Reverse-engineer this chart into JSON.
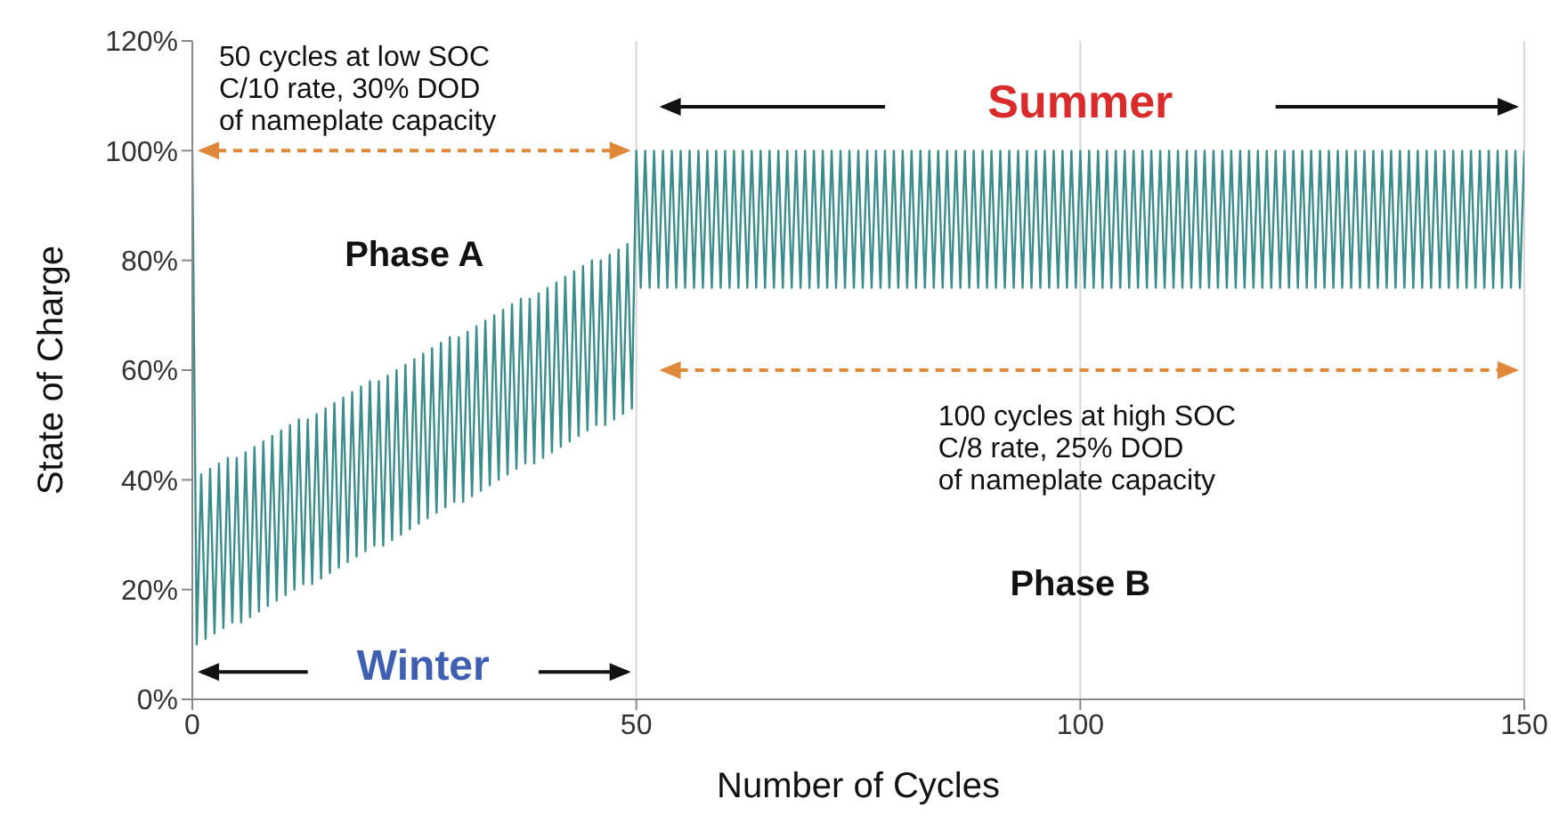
{
  "chart_data": {
    "type": "line",
    "xlabel": "Number of Cycles",
    "ylabel": "State of Charge",
    "xlim": [
      0,
      150
    ],
    "xticks": [
      0,
      50,
      100,
      150
    ],
    "ylim": [
      0,
      120
    ],
    "yticks": [
      {
        "value": 0,
        "label": "0%"
      },
      {
        "value": 20,
        "label": "20%"
      },
      {
        "value": 40,
        "label": "40%"
      },
      {
        "value": 60,
        "label": "60%"
      },
      {
        "value": 80,
        "label": "80%"
      },
      {
        "value": 100,
        "label": "100%"
      },
      {
        "value": 120,
        "label": "120%"
      }
    ],
    "grid": "x",
    "legend": false,
    "marker": "none",
    "line_style": "solid",
    "annotations": [
      "50 cycles at low SOC\nC/10 rate, 30% DOD\nof nameplate capacity",
      "Phase A",
      "Winter",
      "Summer",
      "100 cycles at high SOC\nC/8 rate, 25% DOD\nof nameplate capacity",
      "Phase B"
    ],
    "series": [
      {
        "color": "#3d8c8c",
        "x": [
          0,
          0.5,
          1,
          1.5,
          2,
          2.5,
          3,
          3.5,
          4,
          4.5,
          5,
          5.5,
          6,
          6.5,
          7,
          7.5,
          8,
          8.5,
          9,
          9.5,
          10,
          10.5,
          11,
          11.5,
          12,
          12.5,
          13,
          13.5,
          14,
          14.5,
          15,
          15.5,
          16,
          16.5,
          17,
          17.5,
          18,
          18.5,
          19,
          19.5,
          20,
          20.5,
          21,
          21.5,
          22,
          22.5,
          23,
          23.5,
          24,
          24.5,
          25,
          25.5,
          26,
          26.5,
          27,
          27.5,
          28,
          28.5,
          29,
          29.5,
          30,
          30.5,
          31,
          31.5,
          32,
          32.5,
          33,
          33.5,
          34,
          34.5,
          35,
          35.5,
          36,
          36.5,
          37,
          37.5,
          38,
          38.5,
          39,
          39.5,
          40,
          40.5,
          41,
          41.5,
          42,
          42.5,
          43,
          43.5,
          44,
          44.5,
          45,
          45.5,
          46,
          46.5,
          47,
          47.5,
          48,
          48.5,
          49,
          49.5,
          50,
          50.5,
          51,
          51.5,
          52,
          52.5,
          53,
          53.5,
          54,
          54.5,
          55,
          55.5,
          56,
          56.5,
          57,
          57.5,
          58,
          58.5,
          59,
          59.5,
          60,
          60.5,
          61,
          61.5,
          62,
          62.5,
          63,
          63.5,
          64,
          64.5,
          65,
          65.5,
          66,
          66.5,
          67,
          67.5,
          68,
          68.5,
          69,
          69.5,
          70,
          70.5,
          71,
          71.5,
          72,
          72.5,
          73,
          73.5,
          74,
          74.5,
          75,
          75.5,
          76,
          76.5,
          77,
          77.5,
          78,
          78.5,
          79,
          79.5,
          80,
          80.5,
          81,
          81.5,
          82,
          82.5,
          83,
          83.5,
          84,
          84.5,
          85,
          85.5,
          86,
          86.5,
          87,
          87.5,
          88,
          88.5,
          89,
          89.5,
          90,
          90.5,
          91,
          91.5,
          92,
          92.5,
          93,
          93.5,
          94,
          94.5,
          95,
          95.5,
          96,
          96.5,
          97,
          97.5,
          98,
          98.5,
          99,
          99.5,
          100,
          100.5,
          101,
          101.5,
          102,
          102.5,
          103,
          103.5,
          104,
          104.5,
          105,
          105.5,
          106,
          106.5,
          107,
          107.5,
          108,
          108.5,
          109,
          109.5,
          110,
          110.5,
          111,
          111.5,
          112,
          112.5,
          113,
          113.5,
          114,
          114.5,
          115,
          115.5,
          116,
          116.5,
          117,
          117.5,
          118,
          118.5,
          119,
          119.5,
          120,
          120.5,
          121,
          121.5,
          122,
          122.5,
          123,
          123.5,
          124,
          124.5,
          125,
          125.5,
          126,
          126.5,
          127,
          127.5,
          128,
          128.5,
          129,
          129.5,
          130,
          130.5,
          131,
          131.5,
          132,
          132.5,
          133,
          133.5,
          134,
          134.5,
          135,
          135.5,
          136,
          136.5,
          137,
          137.5,
          138,
          138.5,
          139,
          139.5,
          140,
          140.5,
          141,
          141.5,
          142,
          142.5,
          143,
          143.5,
          144,
          144.5,
          145,
          145.5,
          146,
          146.5,
          147,
          147.5,
          148,
          148.5,
          149,
          149.5,
          150
        ],
        "values": [
          100,
          10,
          41,
          11,
          42,
          12,
          43,
          13,
          44,
          14,
          44,
          14,
          45,
          15,
          46,
          16,
          47,
          17,
          48,
          18,
          49,
          19,
          50,
          20,
          51,
          21,
          51,
          21,
          52,
          22,
          53,
          23,
          54,
          24,
          55,
          25,
          56,
          26,
          57,
          27,
          58,
          28,
          58,
          28,
          59,
          29,
          60,
          30,
          61,
          31,
          62,
          32,
          63,
          33,
          64,
          34,
          65,
          35,
          66,
          36,
          66,
          36,
          67,
          37,
          68,
          38,
          69,
          39,
          70,
          40,
          71,
          41,
          72,
          42,
          73,
          43,
          73,
          43,
          74,
          44,
          75,
          45,
          76,
          46,
          77,
          47,
          78,
          48,
          79,
          49,
          80,
          50,
          80,
          50,
          81,
          51,
          82,
          52,
          83,
          53,
          100,
          75,
          100,
          75,
          100,
          75,
          100,
          75,
          100,
          75,
          100,
          75,
          100,
          75,
          100,
          75,
          100,
          75,
          100,
          75,
          100,
          75,
          100,
          75,
          100,
          75,
          100,
          75,
          100,
          75,
          100,
          75,
          100,
          75,
          100,
          75,
          100,
          75,
          100,
          75,
          100,
          75,
          100,
          75,
          100,
          75,
          100,
          75,
          100,
          75,
          100,
          75,
          100,
          75,
          100,
          75,
          100,
          75,
          100,
          75,
          100,
          75,
          100,
          75,
          100,
          75,
          100,
          75,
          100,
          75,
          100,
          75,
          100,
          75,
          100,
          75,
          100,
          75,
          100,
          75,
          100,
          75,
          100,
          75,
          100,
          75,
          100,
          75,
          100,
          75,
          100,
          75,
          100,
          75,
          100,
          75,
          100,
          75,
          100,
          75,
          100,
          75,
          100,
          75,
          100,
          75,
          100,
          75,
          100,
          75,
          100,
          75,
          100,
          75,
          100,
          75,
          100,
          75,
          100,
          75,
          100,
          75,
          100,
          75,
          100,
          75,
          100,
          75,
          100,
          75,
          100,
          75,
          100,
          75,
          100,
          75,
          100,
          75,
          100,
          75,
          100,
          75,
          100,
          75,
          100,
          75,
          100,
          75,
          100,
          75,
          100,
          75,
          100,
          75,
          100,
          75,
          100,
          75,
          100,
          75,
          100,
          75,
          100,
          75,
          100,
          75,
          100,
          75,
          100,
          75,
          100,
          75,
          100,
          75,
          100,
          75,
          100,
          75,
          100,
          75,
          100,
          75,
          100,
          75,
          100,
          75,
          100,
          75,
          100,
          75,
          100,
          75,
          100,
          75,
          100,
          75,
          100,
          75,
          100,
          75,
          100
        ]
      }
    ]
  }
}
